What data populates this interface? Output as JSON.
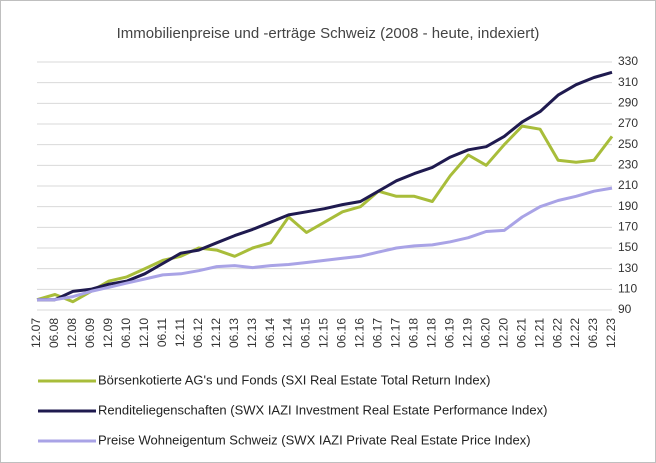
{
  "chart_data": {
    "type": "line",
    "title": "Immobilienpreise und -erträge Schweiz (2008 - heute, indexiert)",
    "categories": [
      "12.07",
      "06.08",
      "12.08",
      "06.09",
      "12.09",
      "06.10",
      "12.10",
      "06.11",
      "12.11",
      "06.12",
      "12.12",
      "06.13",
      "12.13",
      "06.14",
      "12.14",
      "06.15",
      "12.15",
      "06.16",
      "12.16",
      "06.17",
      "12.17",
      "06.18",
      "12.18",
      "06.19",
      "12.19",
      "06.20",
      "12.20",
      "06.21",
      "12.21",
      "06.22",
      "12.22",
      "06.23",
      "12.23"
    ],
    "series": [
      {
        "name": "Börsenkotierte AG's und Fonds (SXI Real Estate Total Return Index)",
        "color": "#a8bd3a",
        "values": [
          100,
          105,
          98,
          108,
          118,
          122,
          130,
          138,
          142,
          150,
          148,
          142,
          150,
          155,
          180,
          165,
          175,
          185,
          190,
          205,
          200,
          200,
          195,
          220,
          240,
          230,
          250,
          268,
          265,
          235,
          233,
          235,
          258
        ]
      },
      {
        "name": "Renditeliegenschaften (SWX IAZI Investment Real Estate Performance Index)",
        "color": "#1f1a4f",
        "values": [
          100,
          100,
          108,
          110,
          115,
          118,
          125,
          135,
          145,
          148,
          155,
          162,
          168,
          175,
          182,
          185,
          188,
          192,
          195,
          205,
          215,
          222,
          228,
          238,
          245,
          248,
          258,
          272,
          282,
          298,
          308,
          315,
          320
        ]
      },
      {
        "name": "Preise Wohneigentum Schweiz (SWX IAZI Private Real Estate Price Index)",
        "color": "#a9a3e6",
        "values": [
          100,
          100,
          103,
          108,
          112,
          116,
          120,
          124,
          125,
          128,
          132,
          133,
          131,
          133,
          134,
          136,
          138,
          140,
          142,
          146,
          150,
          152,
          153,
          156,
          160,
          166,
          167,
          180,
          190,
          196,
          200,
          205,
          208
        ]
      }
    ],
    "ylim": [
      90,
      330
    ],
    "yticks": [
      90,
      110,
      130,
      150,
      170,
      190,
      210,
      230,
      250,
      270,
      290,
      310,
      330
    ],
    "grid": true
  }
}
